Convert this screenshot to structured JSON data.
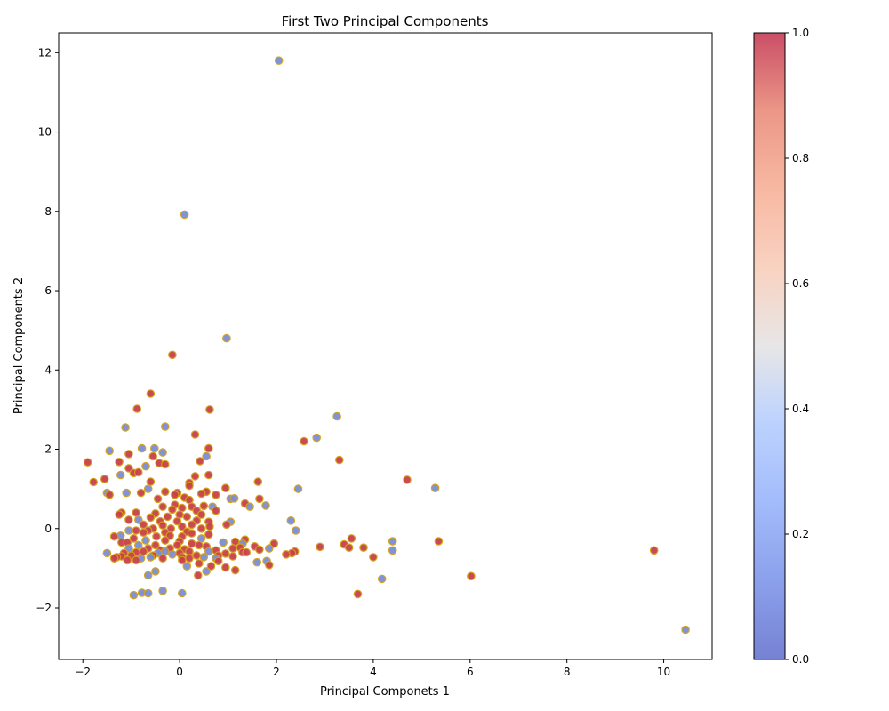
{
  "chart_data": {
    "type": "scatter",
    "title": "First Two Principal Components",
    "xlabel": "Principal Componets 1",
    "ylabel": "Principal Components 2",
    "xlim": [
      -2.5,
      11.0
    ],
    "ylim": [
      -3.3,
      12.5
    ],
    "xticks": [
      -2,
      0,
      2,
      4,
      6,
      8,
      10
    ],
    "yticks": [
      -2,
      0,
      2,
      4,
      6,
      8,
      10,
      12
    ],
    "grid": false,
    "colorbar": {
      "cmap": "coolwarm",
      "range": [
        0.0,
        1.0
      ],
      "ticks": [
        "0.0",
        "0.2",
        "0.4",
        "0.6",
        "0.8",
        "1.0"
      ]
    },
    "marker_edge_color": "#d4a017",
    "class_colors": {
      "0": "#7a8ed6",
      "1": "#c9404a"
    },
    "points": [
      [
        2.05,
        11.8,
        0
      ],
      [
        0.1,
        7.92,
        0
      ],
      [
        0.97,
        4.8,
        0
      ],
      [
        -0.15,
        4.38,
        1
      ],
      [
        -0.6,
        3.4,
        1
      ],
      [
        -0.88,
        3.02,
        1
      ],
      [
        0.62,
        3.0,
        1
      ],
      [
        3.25,
        2.83,
        0
      ],
      [
        -0.3,
        2.57,
        0
      ],
      [
        -1.12,
        2.55,
        0
      ],
      [
        0.32,
        2.37,
        1
      ],
      [
        2.83,
        2.29,
        0
      ],
      [
        2.57,
        2.2,
        1
      ],
      [
        -0.78,
        2.02,
        0
      ],
      [
        -0.52,
        2.02,
        0
      ],
      [
        0.6,
        2.02,
        1
      ],
      [
        -1.45,
        1.96,
        0
      ],
      [
        -0.35,
        1.92,
        0
      ],
      [
        0.55,
        1.82,
        0
      ],
      [
        -1.05,
        1.88,
        1
      ],
      [
        -0.55,
        1.82,
        1
      ],
      [
        3.3,
        1.73,
        1
      ],
      [
        0.42,
        1.7,
        1
      ],
      [
        -1.25,
        1.68,
        1
      ],
      [
        -0.42,
        1.65,
        1
      ],
      [
        -0.3,
        1.62,
        1
      ],
      [
        -1.9,
        1.67,
        1
      ],
      [
        -0.7,
        1.57,
        0
      ],
      [
        -1.05,
        1.52,
        1
      ],
      [
        -0.95,
        1.4,
        1
      ],
      [
        -0.85,
        1.42,
        1
      ],
      [
        -1.22,
        1.35,
        0
      ],
      [
        0.6,
        1.35,
        1
      ],
      [
        0.32,
        1.32,
        1
      ],
      [
        4.7,
        1.23,
        1
      ],
      [
        -1.55,
        1.25,
        1
      ],
      [
        -1.78,
        1.17,
        1
      ],
      [
        1.62,
        1.18,
        1
      ],
      [
        -0.6,
        1.18,
        1
      ],
      [
        0.2,
        1.15,
        1
      ],
      [
        0.2,
        1.08,
        1
      ],
      [
        5.28,
        1.02,
        0
      ],
      [
        2.45,
        1.0,
        0
      ],
      [
        -0.65,
        1.0,
        0
      ],
      [
        0.95,
        1.02,
        1
      ],
      [
        -1.5,
        0.9,
        0
      ],
      [
        -1.1,
        0.9,
        0
      ],
      [
        -0.3,
        0.93,
        1
      ],
      [
        0.55,
        0.93,
        1
      ],
      [
        -0.8,
        0.9,
        1
      ],
      [
        -0.05,
        0.9,
        1
      ],
      [
        0.45,
        0.88,
        1
      ],
      [
        -1.45,
        0.85,
        1
      ],
      [
        0.75,
        0.85,
        1
      ],
      [
        -0.1,
        0.85,
        1
      ],
      [
        1.05,
        0.75,
        0
      ],
      [
        1.13,
        0.76,
        0
      ],
      [
        1.65,
        0.75,
        1
      ],
      [
        -0.45,
        0.75,
        1
      ],
      [
        0.1,
        0.78,
        1
      ],
      [
        0.2,
        0.72,
        1
      ],
      [
        1.35,
        0.63,
        1
      ],
      [
        1.78,
        0.58,
        0
      ],
      [
        -0.1,
        0.6,
        1
      ],
      [
        0.68,
        0.55,
        0
      ],
      [
        1.45,
        0.55,
        0
      ],
      [
        0.5,
        0.57,
        1
      ],
      [
        0.25,
        0.55,
        1
      ],
      [
        -0.35,
        0.55,
        1
      ],
      [
        0.05,
        0.52,
        1
      ],
      [
        0.75,
        0.45,
        1
      ],
      [
        -0.15,
        0.48,
        1
      ],
      [
        0.35,
        0.45,
        1
      ],
      [
        -0.9,
        0.4,
        1
      ],
      [
        -1.2,
        0.4,
        1
      ],
      [
        -1.25,
        0.35,
        1
      ],
      [
        -0.5,
        0.38,
        1
      ],
      [
        0.0,
        0.35,
        1
      ],
      [
        0.45,
        0.35,
        1
      ],
      [
        -0.25,
        0.3,
        1
      ],
      [
        -0.6,
        0.28,
        1
      ],
      [
        0.15,
        0.3,
        1
      ],
      [
        2.3,
        0.2,
        0
      ],
      [
        -0.85,
        0.22,
        0
      ],
      [
        -1.05,
        0.22,
        1
      ],
      [
        1.05,
        0.17,
        0
      ],
      [
        0.35,
        0.2,
        1
      ],
      [
        0.6,
        0.17,
        1
      ],
      [
        -0.4,
        0.18,
        1
      ],
      [
        -0.05,
        0.18,
        1
      ],
      [
        0.97,
        0.1,
        1
      ],
      [
        0.25,
        0.1,
        1
      ],
      [
        -0.75,
        0.1,
        1
      ],
      [
        -0.35,
        0.08,
        1
      ],
      [
        0.05,
        0.05,
        1
      ],
      [
        0.62,
        0.05,
        1
      ],
      [
        -0.55,
        0.0,
        1
      ],
      [
        -0.18,
        0.0,
        1
      ],
      [
        0.45,
        0.0,
        1
      ],
      [
        -0.9,
        -0.05,
        1
      ],
      [
        2.4,
        -0.05,
        0
      ],
      [
        -1.05,
        -0.05,
        0
      ],
      [
        -0.65,
        -0.05,
        1
      ],
      [
        0.15,
        -0.08,
        1
      ],
      [
        -0.3,
        -0.1,
        1
      ],
      [
        0.25,
        -0.12,
        1
      ],
      [
        -0.75,
        -0.1,
        1
      ],
      [
        0.6,
        -0.15,
        1
      ],
      [
        -1.22,
        -0.18,
        0
      ],
      [
        -1.35,
        -0.2,
        1
      ],
      [
        -0.2,
        -0.18,
        1
      ],
      [
        -0.48,
        -0.2,
        1
      ],
      [
        0.05,
        -0.2,
        1
      ],
      [
        -0.95,
        -0.25,
        1
      ],
      [
        0.45,
        -0.25,
        0
      ],
      [
        1.35,
        -0.28,
        1
      ],
      [
        3.55,
        -0.25,
        1
      ],
      [
        4.4,
        -0.32,
        0
      ],
      [
        5.35,
        -0.32,
        1
      ],
      [
        -0.7,
        -0.3,
        0
      ],
      [
        -0.3,
        -0.3,
        1
      ],
      [
        1.15,
        -0.33,
        1
      ],
      [
        0.0,
        -0.32,
        1
      ],
      [
        -1.2,
        -0.35,
        1
      ],
      [
        -1.08,
        -0.35,
        1
      ],
      [
        0.25,
        -0.38,
        1
      ],
      [
        0.9,
        -0.35,
        0
      ],
      [
        1.3,
        -0.38,
        0
      ],
      [
        3.4,
        -0.4,
        1
      ],
      [
        1.95,
        -0.38,
        1
      ],
      [
        -0.85,
        -0.42,
        0
      ],
      [
        -0.5,
        -0.42,
        1
      ],
      [
        -0.05,
        -0.42,
        1
      ],
      [
        0.55,
        -0.45,
        1
      ],
      [
        0.4,
        -0.42,
        1
      ],
      [
        1.55,
        -0.45,
        1
      ],
      [
        1.25,
        -0.48,
        1
      ],
      [
        2.9,
        -0.46,
        1
      ],
      [
        3.5,
        -0.48,
        1
      ],
      [
        3.8,
        -0.48,
        1
      ],
      [
        -1.05,
        -0.5,
        0
      ],
      [
        -0.65,
        -0.5,
        1
      ],
      [
        -0.2,
        -0.5,
        1
      ],
      [
        0.1,
        -0.52,
        1
      ],
      [
        1.1,
        -0.5,
        1
      ],
      [
        1.85,
        -0.5,
        0
      ],
      [
        -0.4,
        -0.55,
        1
      ],
      [
        0.75,
        -0.55,
        1
      ],
      [
        1.65,
        -0.53,
        1
      ],
      [
        4.4,
        -0.55,
        0
      ],
      [
        9.8,
        -0.55,
        1
      ],
      [
        -0.3,
        -0.58,
        0
      ],
      [
        -0.75,
        -0.58,
        1
      ],
      [
        0.2,
        -0.58,
        1
      ],
      [
        0.6,
        -0.58,
        0
      ],
      [
        1.3,
        -0.6,
        1
      ],
      [
        1.38,
        -0.6,
        1
      ],
      [
        2.38,
        -0.58,
        1
      ],
      [
        2.32,
        -0.62,
        1
      ],
      [
        -0.9,
        -0.6,
        1
      ],
      [
        -1.5,
        -0.62,
        0
      ],
      [
        -1.15,
        -0.62,
        1
      ],
      [
        -0.45,
        -0.62,
        0
      ],
      [
        0.0,
        -0.62,
        1
      ],
      [
        0.95,
        -0.63,
        1
      ],
      [
        2.2,
        -0.65,
        1
      ],
      [
        -0.55,
        -0.68,
        1
      ],
      [
        -1.0,
        -0.68,
        1
      ],
      [
        -1.2,
        -0.7,
        1
      ],
      [
        -0.15,
        -0.65,
        0
      ],
      [
        0.35,
        -0.68,
        1
      ],
      [
        0.8,
        -0.68,
        1
      ],
      [
        1.1,
        -0.7,
        1
      ],
      [
        -1.3,
        -0.72,
        1
      ],
      [
        -0.6,
        -0.72,
        0
      ],
      [
        0.05,
        -0.72,
        1
      ],
      [
        0.5,
        -0.72,
        0
      ],
      [
        4.0,
        -0.72,
        1
      ],
      [
        -1.35,
        -0.75,
        1
      ],
      [
        -0.8,
        -0.75,
        0
      ],
      [
        -0.35,
        -0.75,
        1
      ],
      [
        0.2,
        -0.75,
        1
      ],
      [
        0.75,
        -0.75,
        0
      ],
      [
        -1.08,
        -0.8,
        1
      ],
      [
        -0.9,
        -0.8,
        1
      ],
      [
        0.05,
        -0.8,
        1
      ],
      [
        0.8,
        -0.82,
        1
      ],
      [
        1.8,
        -0.82,
        0
      ],
      [
        1.6,
        -0.85,
        0
      ],
      [
        0.4,
        -0.88,
        1
      ],
      [
        1.85,
        -0.92,
        1
      ],
      [
        0.15,
        -0.95,
        0
      ],
      [
        0.65,
        -0.95,
        1
      ],
      [
        0.95,
        -0.98,
        1
      ],
      [
        -0.5,
        -1.08,
        0
      ],
      [
        0.55,
        -1.08,
        0
      ],
      [
        1.15,
        -1.05,
        1
      ],
      [
        -0.65,
        -1.18,
        0
      ],
      [
        0.38,
        -1.18,
        1
      ],
      [
        6.02,
        -1.2,
        1
      ],
      [
        4.18,
        -1.27,
        0
      ],
      [
        -0.35,
        -1.57,
        0
      ],
      [
        -0.78,
        -1.62,
        0
      ],
      [
        -0.65,
        -1.63,
        0
      ],
      [
        0.05,
        -1.63,
        0
      ],
      [
        3.68,
        -1.65,
        1
      ],
      [
        -0.95,
        -1.68,
        0
      ],
      [
        10.45,
        -2.55,
        0
      ]
    ]
  }
}
